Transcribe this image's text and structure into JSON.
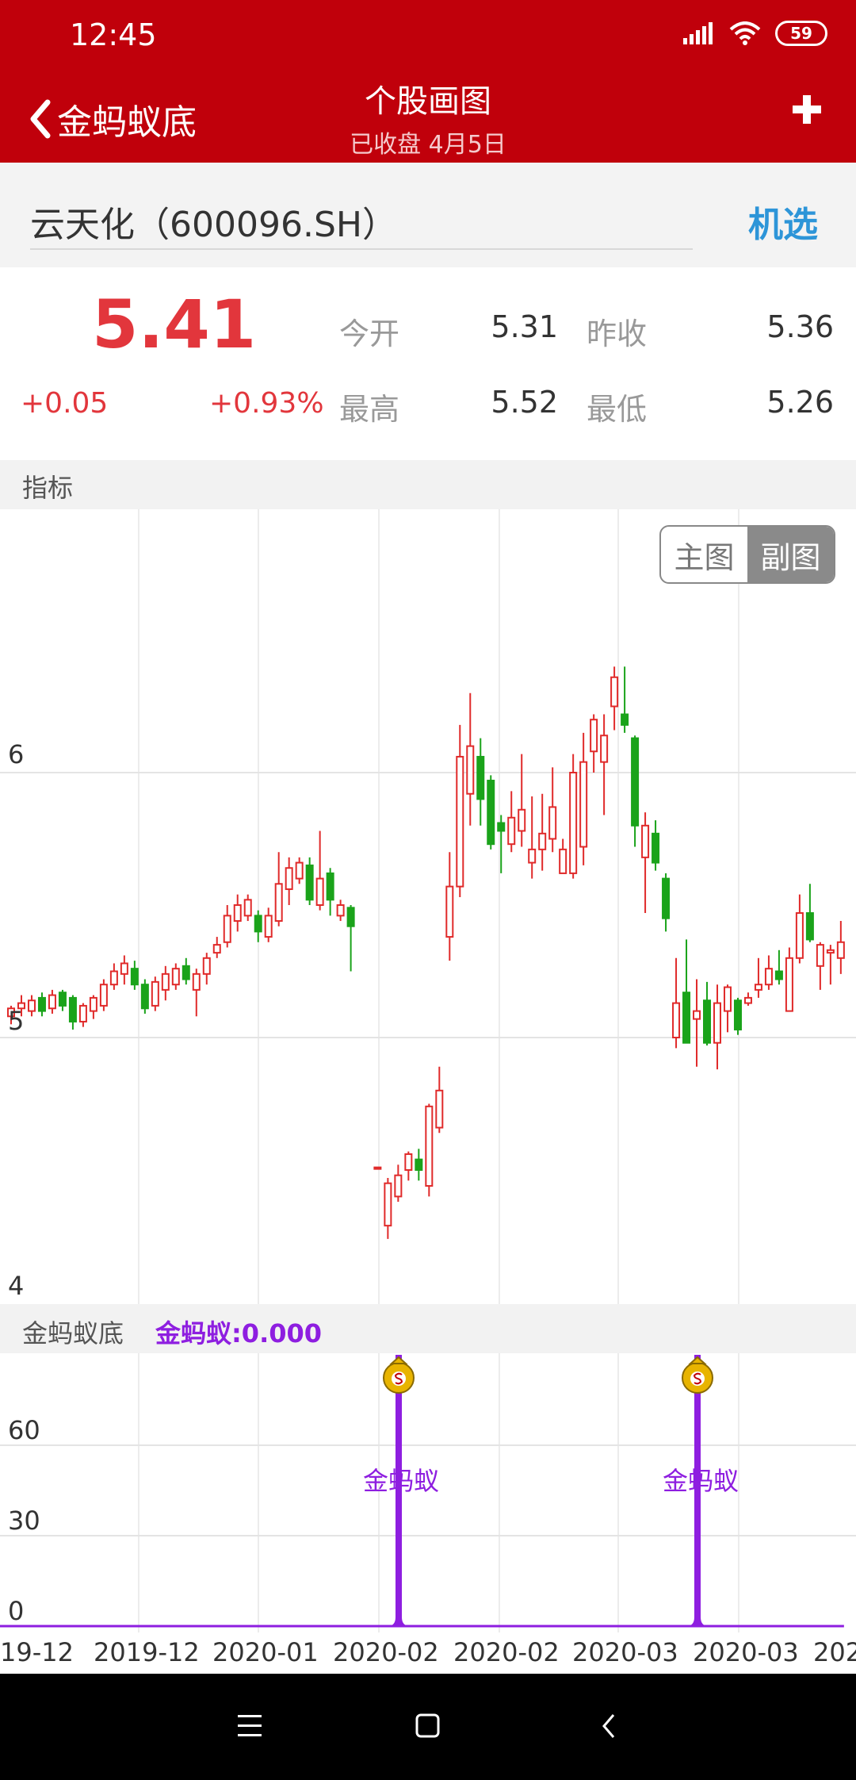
{
  "status": {
    "time": "12:45",
    "battery": "59"
  },
  "nav": {
    "back_label": "金蚂蚁底",
    "title": "个股画图",
    "subtitle": "已收盘  4月5日"
  },
  "stock": {
    "name": "云天化（600096.SH）",
    "pick_label": "机选"
  },
  "quote": {
    "price": "5.41",
    "change": "+0.05",
    "change_pct": "+0.93%",
    "open_label": "今开",
    "open": "5.31",
    "prev_close_label": "昨收",
    "prev_close": "5.36",
    "high_label": "最高",
    "high": "5.52",
    "low_label": "最低",
    "low": "5.26"
  },
  "indicator_section": {
    "label": "指标"
  },
  "toggle": {
    "main": "主图",
    "sub": "副图"
  },
  "colors": {
    "up": "#e02a2a",
    "down": "#1aa31a",
    "signal": "#8e1ee0",
    "header": "#c0000b",
    "pick": "#2d95d8"
  },
  "main_chart": {
    "y_labels": [
      "6",
      "5",
      "4"
    ]
  },
  "sub_section": {
    "name": "金蚂蚁底",
    "value_text": "金蚂蚁:0.000"
  },
  "sub_chart": {
    "y_labels": [
      "60",
      "30",
      "0"
    ],
    "signal_label_1": "金蚂蚁",
    "signal_label_2": "金蚂蚁"
  },
  "x_labels": [
    "19-12",
    "2019-12",
    "2020-01",
    "2020-02",
    "2020-02",
    "2020-03",
    "2020-03",
    "202"
  ],
  "chart_data": {
    "type": "candlestick",
    "ylim": [
      4,
      6.9
    ],
    "x_tick_labels": [
      "19-12",
      "2019-12",
      "2020-01",
      "2020-02",
      "2020-02",
      "2020-03",
      "2020-03",
      "202"
    ],
    "candles": [
      {
        "o": 5.08,
        "c": 5.11,
        "h": 5.12,
        "l": 5.05
      },
      {
        "o": 5.11,
        "c": 5.13,
        "h": 5.16,
        "l": 5.08
      },
      {
        "o": 5.1,
        "c": 5.14,
        "h": 5.16,
        "l": 5.08
      },
      {
        "o": 5.15,
        "c": 5.1,
        "h": 5.17,
        "l": 5.08
      },
      {
        "o": 5.11,
        "c": 5.16,
        "h": 5.18,
        "l": 5.09
      },
      {
        "o": 5.17,
        "c": 5.12,
        "h": 5.18,
        "l": 5.1
      },
      {
        "o": 5.15,
        "c": 5.06,
        "h": 5.16,
        "l": 5.03
      },
      {
        "o": 5.06,
        "c": 5.12,
        "h": 5.13,
        "l": 5.04
      },
      {
        "o": 5.1,
        "c": 5.15,
        "h": 5.16,
        "l": 5.07
      },
      {
        "o": 5.12,
        "c": 5.2,
        "h": 5.22,
        "l": 5.1
      },
      {
        "o": 5.2,
        "c": 5.25,
        "h": 5.28,
        "l": 5.18
      },
      {
        "o": 5.24,
        "c": 5.28,
        "h": 5.31,
        "l": 5.2
      },
      {
        "o": 5.26,
        "c": 5.2,
        "h": 5.29,
        "l": 5.18
      },
      {
        "o": 5.2,
        "c": 5.11,
        "h": 5.22,
        "l": 5.09
      },
      {
        "o": 5.12,
        "c": 5.21,
        "h": 5.23,
        "l": 5.1
      },
      {
        "o": 5.18,
        "c": 5.24,
        "h": 5.27,
        "l": 5.14
      },
      {
        "o": 5.2,
        "c": 5.26,
        "h": 5.28,
        "l": 5.18
      },
      {
        "o": 5.27,
        "c": 5.22,
        "h": 5.3,
        "l": 5.2
      },
      {
        "o": 5.18,
        "c": 5.24,
        "h": 5.26,
        "l": 5.08
      },
      {
        "o": 5.24,
        "c": 5.3,
        "h": 5.32,
        "l": 5.2
      },
      {
        "o": 5.32,
        "c": 5.35,
        "h": 5.38,
        "l": 5.3
      },
      {
        "o": 5.36,
        "c": 5.46,
        "h": 5.5,
        "l": 5.34
      },
      {
        "o": 5.44,
        "c": 5.5,
        "h": 5.54,
        "l": 5.4
      },
      {
        "o": 5.46,
        "c": 5.52,
        "h": 5.54,
        "l": 5.44
      },
      {
        "o": 5.46,
        "c": 5.4,
        "h": 5.48,
        "l": 5.36
      },
      {
        "o": 5.38,
        "c": 5.46,
        "h": 5.49,
        "l": 5.36
      },
      {
        "o": 5.44,
        "c": 5.58,
        "h": 5.7,
        "l": 5.42
      },
      {
        "o": 5.56,
        "c": 5.64,
        "h": 5.68,
        "l": 5.5
      },
      {
        "o": 5.6,
        "c": 5.66,
        "h": 5.68,
        "l": 5.58
      },
      {
        "o": 5.65,
        "c": 5.52,
        "h": 5.68,
        "l": 5.5
      },
      {
        "o": 5.5,
        "c": 5.6,
        "h": 5.78,
        "l": 5.48
      },
      {
        "o": 5.62,
        "c": 5.52,
        "h": 5.64,
        "l": 5.46
      },
      {
        "o": 5.46,
        "c": 5.5,
        "h": 5.52,
        "l": 5.44
      },
      {
        "o": 5.49,
        "c": 5.42,
        "h": 5.5,
        "l": 5.25
      },
      {
        "o": 4.51,
        "c": 4.51,
        "h": 4.51,
        "l": 4.51
      },
      {
        "o": 4.29,
        "c": 4.45,
        "h": 4.47,
        "l": 4.24
      },
      {
        "o": 4.4,
        "c": 4.48,
        "h": 4.52,
        "l": 4.38
      },
      {
        "o": 4.5,
        "c": 4.56,
        "h": 4.57,
        "l": 4.46
      },
      {
        "o": 4.54,
        "c": 4.5,
        "h": 4.58,
        "l": 4.46
      },
      {
        "o": 4.44,
        "c": 4.74,
        "h": 4.75,
        "l": 4.4
      },
      {
        "o": 4.66,
        "c": 4.8,
        "h": 4.89,
        "l": 4.64
      },
      {
        "o": 5.38,
        "c": 5.57,
        "h": 5.7,
        "l": 5.29
      },
      {
        "o": 5.57,
        "c": 6.06,
        "h": 6.18,
        "l": 5.53
      },
      {
        "o": 5.92,
        "c": 6.1,
        "h": 6.3,
        "l": 5.8
      },
      {
        "o": 6.06,
        "c": 5.9,
        "h": 6.13,
        "l": 5.8
      },
      {
        "o": 5.97,
        "c": 5.73,
        "h": 5.99,
        "l": 5.71
      },
      {
        "o": 5.81,
        "c": 5.78,
        "h": 5.84,
        "l": 5.62
      },
      {
        "o": 5.73,
        "c": 5.83,
        "h": 5.93,
        "l": 5.7
      },
      {
        "o": 5.78,
        "c": 5.86,
        "h": 6.07,
        "l": 5.72
      },
      {
        "o": 5.66,
        "c": 5.71,
        "h": 5.91,
        "l": 5.6
      },
      {
        "o": 5.71,
        "c": 5.77,
        "h": 5.92,
        "l": 5.63
      },
      {
        "o": 5.75,
        "c": 5.87,
        "h": 6.02,
        "l": 5.7
      },
      {
        "o": 5.62,
        "c": 5.71,
        "h": 5.75,
        "l": 5.62
      },
      {
        "o": 5.62,
        "c": 6.0,
        "h": 6.07,
        "l": 5.6
      },
      {
        "o": 5.72,
        "c": 6.04,
        "h": 6.15,
        "l": 5.65
      },
      {
        "o": 6.08,
        "c": 6.2,
        "h": 6.22,
        "l": 6.0
      },
      {
        "o": 6.04,
        "c": 6.14,
        "h": 6.22,
        "l": 5.84
      },
      {
        "o": 6.25,
        "c": 6.36,
        "h": 6.4,
        "l": 6.16
      },
      {
        "o": 6.22,
        "c": 6.18,
        "h": 6.4,
        "l": 6.15
      },
      {
        "o": 6.13,
        "c": 5.8,
        "h": 6.14,
        "l": 5.72
      },
      {
        "o": 5.68,
        "c": 5.8,
        "h": 5.85,
        "l": 5.47
      },
      {
        "o": 5.77,
        "c": 5.66,
        "h": 5.82,
        "l": 5.63
      },
      {
        "o": 5.6,
        "c": 5.45,
        "h": 5.62,
        "l": 5.4
      },
      {
        "o": 5.0,
        "c": 5.13,
        "h": 5.3,
        "l": 4.96
      },
      {
        "o": 5.17,
        "c": 4.98,
        "h": 5.37,
        "l": 4.98
      },
      {
        "o": 5.07,
        "c": 5.1,
        "h": 5.22,
        "l": 4.89
      },
      {
        "o": 5.14,
        "c": 4.98,
        "h": 5.21,
        "l": 4.97
      },
      {
        "o": 4.98,
        "c": 5.13,
        "h": 5.2,
        "l": 4.88
      },
      {
        "o": 5.1,
        "c": 5.19,
        "h": 5.2,
        "l": 5.02
      },
      {
        "o": 5.14,
        "c": 5.03,
        "h": 5.15,
        "l": 5.01
      },
      {
        "o": 5.13,
        "c": 5.15,
        "h": 5.17,
        "l": 5.12
      },
      {
        "o": 5.18,
        "c": 5.2,
        "h": 5.3,
        "l": 5.15
      },
      {
        "o": 5.2,
        "c": 5.26,
        "h": 5.31,
        "l": 5.18
      },
      {
        "o": 5.25,
        "c": 5.22,
        "h": 5.33,
        "l": 5.2
      },
      {
        "o": 5.1,
        "c": 5.3,
        "h": 5.34,
        "l": 5.1
      },
      {
        "o": 5.3,
        "c": 5.47,
        "h": 5.54,
        "l": 5.28
      },
      {
        "o": 5.47,
        "c": 5.37,
        "h": 5.58,
        "l": 5.36
      },
      {
        "o": 5.27,
        "c": 5.35,
        "h": 5.36,
        "l": 5.18
      },
      {
        "o": 5.32,
        "c": 5.33,
        "h": 5.35,
        "l": 5.2
      },
      {
        "o": 5.3,
        "c": 5.36,
        "h": 5.44,
        "l": 5.24
      }
    ],
    "signal_series": {
      "name": "金蚂蚁",
      "spikes_at_candle_index": [
        35,
        68
      ],
      "spike_value": 90,
      "baseline": 0
    }
  }
}
